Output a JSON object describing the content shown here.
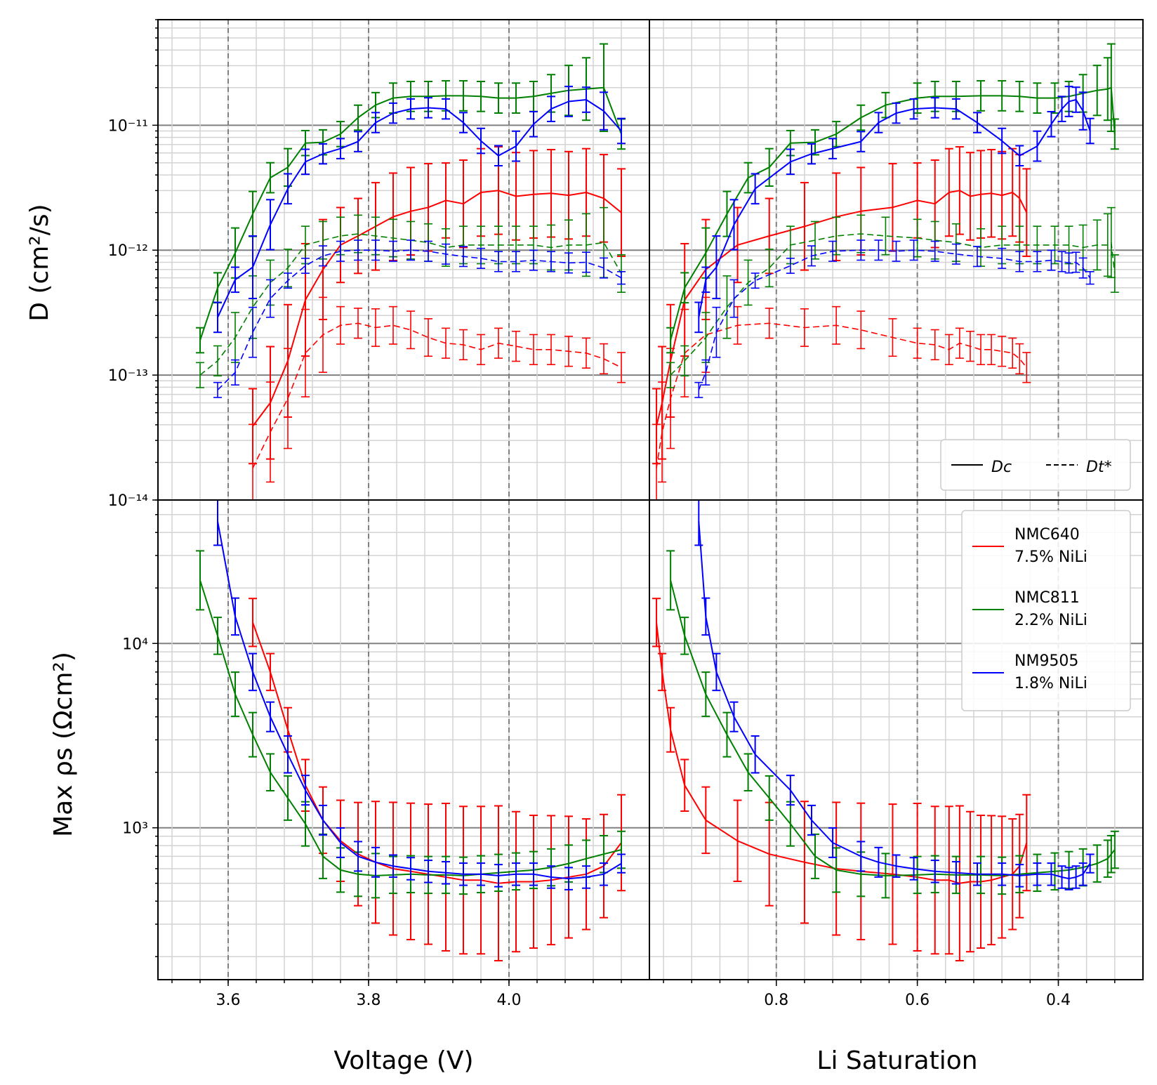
{
  "figure": {
    "y_label_top": "D (cm²/s)",
    "y_label_bottom": "Max ρs (Ωcm²)",
    "x_label_left": "Voltage (V)",
    "x_label_right": "Li Saturation"
  },
  "colors": {
    "NMC640": "#ff0000",
    "NMC811": "#008000",
    "NM9505": "#0000ff"
  },
  "legend_styles": [
    {
      "style": "solid",
      "label": "Dc"
    },
    {
      "style": "dashed",
      "label": "Dt*"
    }
  ],
  "legend_samples": [
    {
      "name": "NMC640",
      "line1": "NMC640",
      "line2": "7.5% NiLi"
    },
    {
      "name": "NMC811",
      "line1": "NMC811",
      "line2": "2.2% NiLi"
    },
    {
      "name": "NM9505",
      "line1": "NM9505",
      "line2": "1.8% NiLi"
    }
  ],
  "chart_data": {
    "type": "line",
    "layout": "2x2 grid, shared y per row, shared x per column",
    "error_bars": true,
    "legend_placement": {
      "line_style": "lower-right of top-right panel",
      "samples": "upper-right of bottom-right panel"
    },
    "grid": true,
    "axes": {
      "voltage": {
        "xlabel": "Voltage (V)",
        "xlim": [
          3.5,
          4.2
        ],
        "xticks": [
          3.6,
          3.8,
          4.0
        ]
      },
      "saturation": {
        "xlabel": "Li Saturation",
        "xlim": [
          0.98,
          0.28
        ],
        "xticks": [
          0.8,
          0.6,
          0.4
        ],
        "reversed": true
      },
      "diffusivity": {
        "ylabel": "D (cm²/s)",
        "scale": "log",
        "ylim": [
          1e-14,
          7e-11
        ],
        "yticks": [
          "10⁻¹⁴",
          "10⁻¹³",
          "10⁻¹²",
          "10⁻¹¹"
        ]
      },
      "resistivity": {
        "ylabel": "Max ρs (Ωcm²)",
        "scale": "log",
        "ylim": [
          150,
          60000
        ],
        "yticks": [
          "10³",
          "10⁴"
        ]
      }
    },
    "series": [
      {
        "name": "NMC640 7.5% NiLi",
        "color": "#ff0000",
        "voltage": [
          3.635,
          3.66,
          3.685,
          3.71,
          3.735,
          3.76,
          3.785,
          3.81,
          3.835,
          3.86,
          3.885,
          3.91,
          3.935,
          3.96,
          3.985,
          4.01,
          4.035,
          4.06,
          4.085,
          4.11,
          4.135,
          4.16
        ],
        "li_saturation": [
          0.97,
          0.962,
          0.95,
          0.93,
          0.9,
          0.855,
          0.81,
          0.76,
          0.715,
          0.68,
          0.635,
          0.6,
          0.575,
          0.555,
          0.54,
          0.525,
          0.51,
          0.495,
          0.48,
          0.465,
          0.455,
          0.445
        ],
        "Dc": [
          3.9e-14,
          6e-14,
          1.3e-13,
          4e-13,
          7e-13,
          1.1e-12,
          1.3e-12,
          1.55e-12,
          1.85e-12,
          2.05e-12,
          2.2e-12,
          2.5e-12,
          2.35e-12,
          2.9e-12,
          3e-12,
          2.7e-12,
          2.8e-12,
          2.85e-12,
          2.75e-12,
          2.9e-12,
          2.6e-12,
          2e-12
        ],
        "Dc_err": [
          0.3,
          0.45,
          0.45,
          0.45,
          0.4,
          0.3,
          0.3,
          0.35,
          0.35,
          0.35,
          0.35,
          0.3,
          0.35,
          0.35,
          0.35,
          0.35,
          0.35,
          0.35,
          0.35,
          0.35,
          0.35,
          0.35
        ],
        "Dt": [
          1.8e-14,
          3.5e-14,
          6.5e-14,
          1.5e-13,
          2.1e-13,
          2.5e-13,
          2.6e-13,
          2.4e-13,
          2.5e-13,
          2.3e-13,
          2e-13,
          1.8e-13,
          1.75e-13,
          1.6e-13,
          1.8e-13,
          1.7e-13,
          1.6e-13,
          1.6e-13,
          1.55e-13,
          1.5e-13,
          1.35e-13,
          1.15e-13
        ],
        "Dt_err": [
          0.35,
          0.4,
          0.4,
          0.35,
          0.3,
          0.15,
          0.12,
          0.15,
          0.15,
          0.15,
          0.15,
          0.12,
          0.12,
          0.12,
          0.12,
          0.12,
          0.12,
          0.12,
          0.12,
          0.12,
          0.12,
          0.12
        ],
        "rho_max": [
          13000,
          7000,
          3400,
          1700,
          1100,
          850,
          720,
          650,
          600,
          580,
          560,
          540,
          520,
          520,
          500,
          510,
          510,
          520,
          540,
          560,
          620,
          830
        ],
        "rho_err": [
          0.13,
          0.1,
          0.12,
          0.14,
          0.18,
          0.22,
          0.28,
          0.33,
          0.36,
          0.37,
          0.38,
          0.4,
          0.4,
          0.4,
          0.42,
          0.38,
          0.36,
          0.35,
          0.33,
          0.3,
          0.28,
          0.26
        ]
      },
      {
        "name": "NMC811 2.2% NiLi",
        "color": "#008000",
        "voltage": [
          3.56,
          3.585,
          3.61,
          3.635,
          3.66,
          3.685,
          3.71,
          3.735,
          3.76,
          3.785,
          3.81,
          3.835,
          3.86,
          3.885,
          3.91,
          3.935,
          3.96,
          3.985,
          4.01,
          4.035,
          4.06,
          4.085,
          4.11,
          4.135,
          4.16
        ],
        "li_saturation": [
          0.95,
          0.93,
          0.9,
          0.87,
          0.84,
          0.81,
          0.78,
          0.745,
          0.715,
          0.68,
          0.645,
          0.6,
          0.575,
          0.545,
          0.51,
          0.48,
          0.455,
          0.43,
          0.405,
          0.385,
          0.365,
          0.345,
          0.33,
          0.325,
          0.32
        ],
        "Dc": [
          1.9e-13,
          5e-13,
          9.5e-13,
          1.95e-12,
          3.8e-12,
          4.6e-12,
          7.2e-12,
          7.3e-12,
          8.5e-12,
          1.15e-11,
          1.45e-11,
          1.65e-11,
          1.7e-11,
          1.7e-11,
          1.72e-11,
          1.72e-11,
          1.7e-11,
          1.65e-11,
          1.65e-11,
          1.7e-11,
          1.8e-11,
          1.9e-11,
          1.95e-11,
          2e-11,
          8.5e-12
        ],
        "Dc_err": [
          0.1,
          0.12,
          0.2,
          0.18,
          0.12,
          0.15,
          0.1,
          0.1,
          0.1,
          0.1,
          0.1,
          0.12,
          0.12,
          0.12,
          0.12,
          0.12,
          0.12,
          0.12,
          0.12,
          0.12,
          0.15,
          0.2,
          0.25,
          0.35,
          0.12
        ],
        "Dt": [
          1e-13,
          1.3e-13,
          2e-13,
          3.5e-13,
          5.5e-13,
          7.2e-13,
          1.1e-12,
          1.2e-12,
          1.3e-12,
          1.35e-12,
          1.3e-12,
          1.25e-12,
          1.2e-12,
          1.15e-12,
          1.05e-12,
          1.1e-12,
          1.1e-12,
          1.1e-12,
          1.1e-12,
          1.1e-12,
          1.05e-12,
          1.1e-12,
          1.1e-12,
          1.15e-12,
          6.5e-13
        ],
        "Dt_err": [
          0.1,
          0.12,
          0.2,
          0.25,
          0.18,
          0.15,
          0.15,
          0.15,
          0.15,
          0.15,
          0.15,
          0.15,
          0.15,
          0.15,
          0.15,
          0.15,
          0.15,
          0.15,
          0.15,
          0.15,
          0.18,
          0.2,
          0.25,
          0.28,
          0.15
        ],
        "rho_max": [
          22000,
          11000,
          5300,
          3200,
          2000,
          1450,
          1050,
          700,
          590,
          560,
          550,
          555,
          560,
          555,
          555,
          550,
          560,
          570,
          580,
          590,
          610,
          640,
          680,
          720,
          760
        ],
        "rho_err": [
          0.16,
          0.1,
          0.12,
          0.12,
          0.1,
          0.12,
          0.12,
          0.12,
          0.12,
          0.12,
          0.12,
          0.1,
          0.1,
          0.1,
          0.1,
          0.1,
          0.1,
          0.1,
          0.1,
          0.1,
          0.1,
          0.1,
          0.1,
          0.1,
          0.1
        ]
      },
      {
        "name": "NM9505 1.8% NiLi",
        "color": "#0000ff",
        "voltage": [
          3.585,
          3.61,
          3.635,
          3.66,
          3.685,
          3.71,
          3.735,
          3.76,
          3.785,
          3.81,
          3.835,
          3.86,
          3.885,
          3.91,
          3.935,
          3.96,
          3.985,
          4.01,
          4.035,
          4.06,
          4.085,
          4.11,
          4.135,
          4.16
        ],
        "li_saturation": [
          0.91,
          0.9,
          0.885,
          0.86,
          0.83,
          0.78,
          0.75,
          0.72,
          0.68,
          0.655,
          0.63,
          0.605,
          0.575,
          0.545,
          0.515,
          0.48,
          0.455,
          0.43,
          0.41,
          0.395,
          0.385,
          0.375,
          0.365,
          0.355
        ],
        "Dc": [
          2.9e-13,
          5.8e-13,
          7.3e-13,
          1.6e-12,
          3.1e-12,
          5.1e-12,
          5.9e-12,
          6.5e-12,
          7.4e-12,
          1.05e-11,
          1.25e-11,
          1.35e-11,
          1.38e-11,
          1.35e-11,
          1.05e-11,
          7.5e-12,
          5.7e-12,
          6.8e-12,
          1.02e-11,
          1.35e-11,
          1.55e-11,
          1.6e-11,
          1.3e-11,
          9e-12
        ],
        "Dc_err": [
          0.12,
          0.1,
          0.25,
          0.2,
          0.12,
          0.1,
          0.08,
          0.08,
          0.08,
          0.08,
          0.08,
          0.08,
          0.08,
          0.08,
          0.08,
          0.1,
          0.08,
          0.12,
          0.1,
          0.1,
          0.12,
          0.1,
          0.15,
          0.1
        ],
        "Dt": [
          7.6e-14,
          1.05e-13,
          2.2e-13,
          4.1e-13,
          5.7e-13,
          7.5e-13,
          9e-13,
          9.8e-13,
          1e-12,
          1e-12,
          9.8e-13,
          1e-12,
          9.8e-13,
          9.3e-13,
          8.9e-13,
          8.6e-13,
          8.1e-13,
          8.1e-13,
          8.3e-13,
          8.1e-13,
          7.9e-13,
          8e-13,
          7.2e-13,
          6e-13
        ],
        "Dt_err": [
          0.06,
          0.1,
          0.2,
          0.15,
          0.06,
          0.06,
          0.08,
          0.08,
          0.08,
          0.08,
          0.08,
          0.08,
          0.08,
          0.08,
          0.08,
          0.08,
          0.08,
          0.08,
          0.08,
          0.08,
          0.08,
          0.08,
          0.08,
          0.05
        ],
        "rho_max": [
          46000,
          14000,
          7000,
          4000,
          2500,
          1600,
          1100,
          830,
          700,
          650,
          620,
          600,
          580,
          570,
          560,
          560,
          550,
          560,
          560,
          540,
          530,
          540,
          560,
          640
        ],
        "rho_err": [
          0.13,
          0.1,
          0.1,
          0.08,
          0.1,
          0.08,
          0.08,
          0.08,
          0.08,
          0.08,
          0.06,
          0.06,
          0.06,
          0.06,
          0.06,
          0.06,
          0.06,
          0.06,
          0.06,
          0.06,
          0.06,
          0.06,
          0.06,
          0.05
        ]
      }
    ]
  }
}
